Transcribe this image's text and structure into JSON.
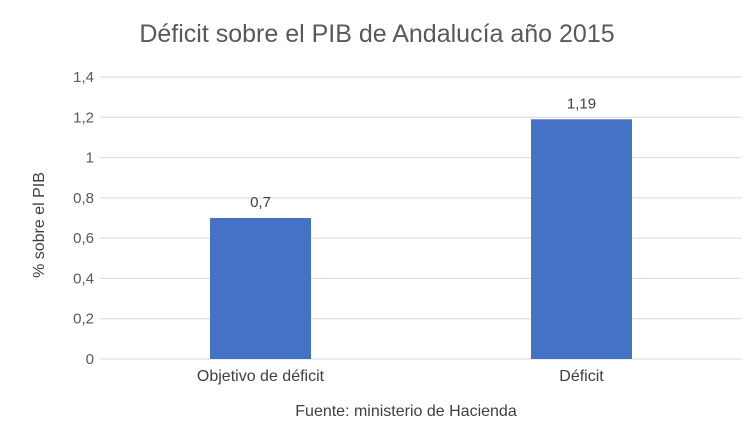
{
  "chart_data": {
    "type": "bar",
    "title": "Déficit sobre el PIB de Andalucía año 2015",
    "categories": [
      "Objetivo de déficit",
      "Déficit"
    ],
    "values": [
      0.7,
      1.19
    ],
    "data_labels": [
      "0,7",
      "1,19"
    ],
    "xlabel": "",
    "ylabel": "% sobre el PIB",
    "ylim": [
      0,
      1.4
    ],
    "yticks": [
      0,
      0.2,
      0.4,
      0.6,
      0.8,
      1,
      1.2,
      1.4
    ],
    "ytick_labels": [
      "0",
      "0,2",
      "0,4",
      "0,6",
      "0,8",
      "1",
      "1,2",
      "1,4"
    ],
    "grid": true,
    "legend": "none",
    "source": "Fuente: ministerio de Hacienda",
    "bar_color": "#4472c4"
  }
}
